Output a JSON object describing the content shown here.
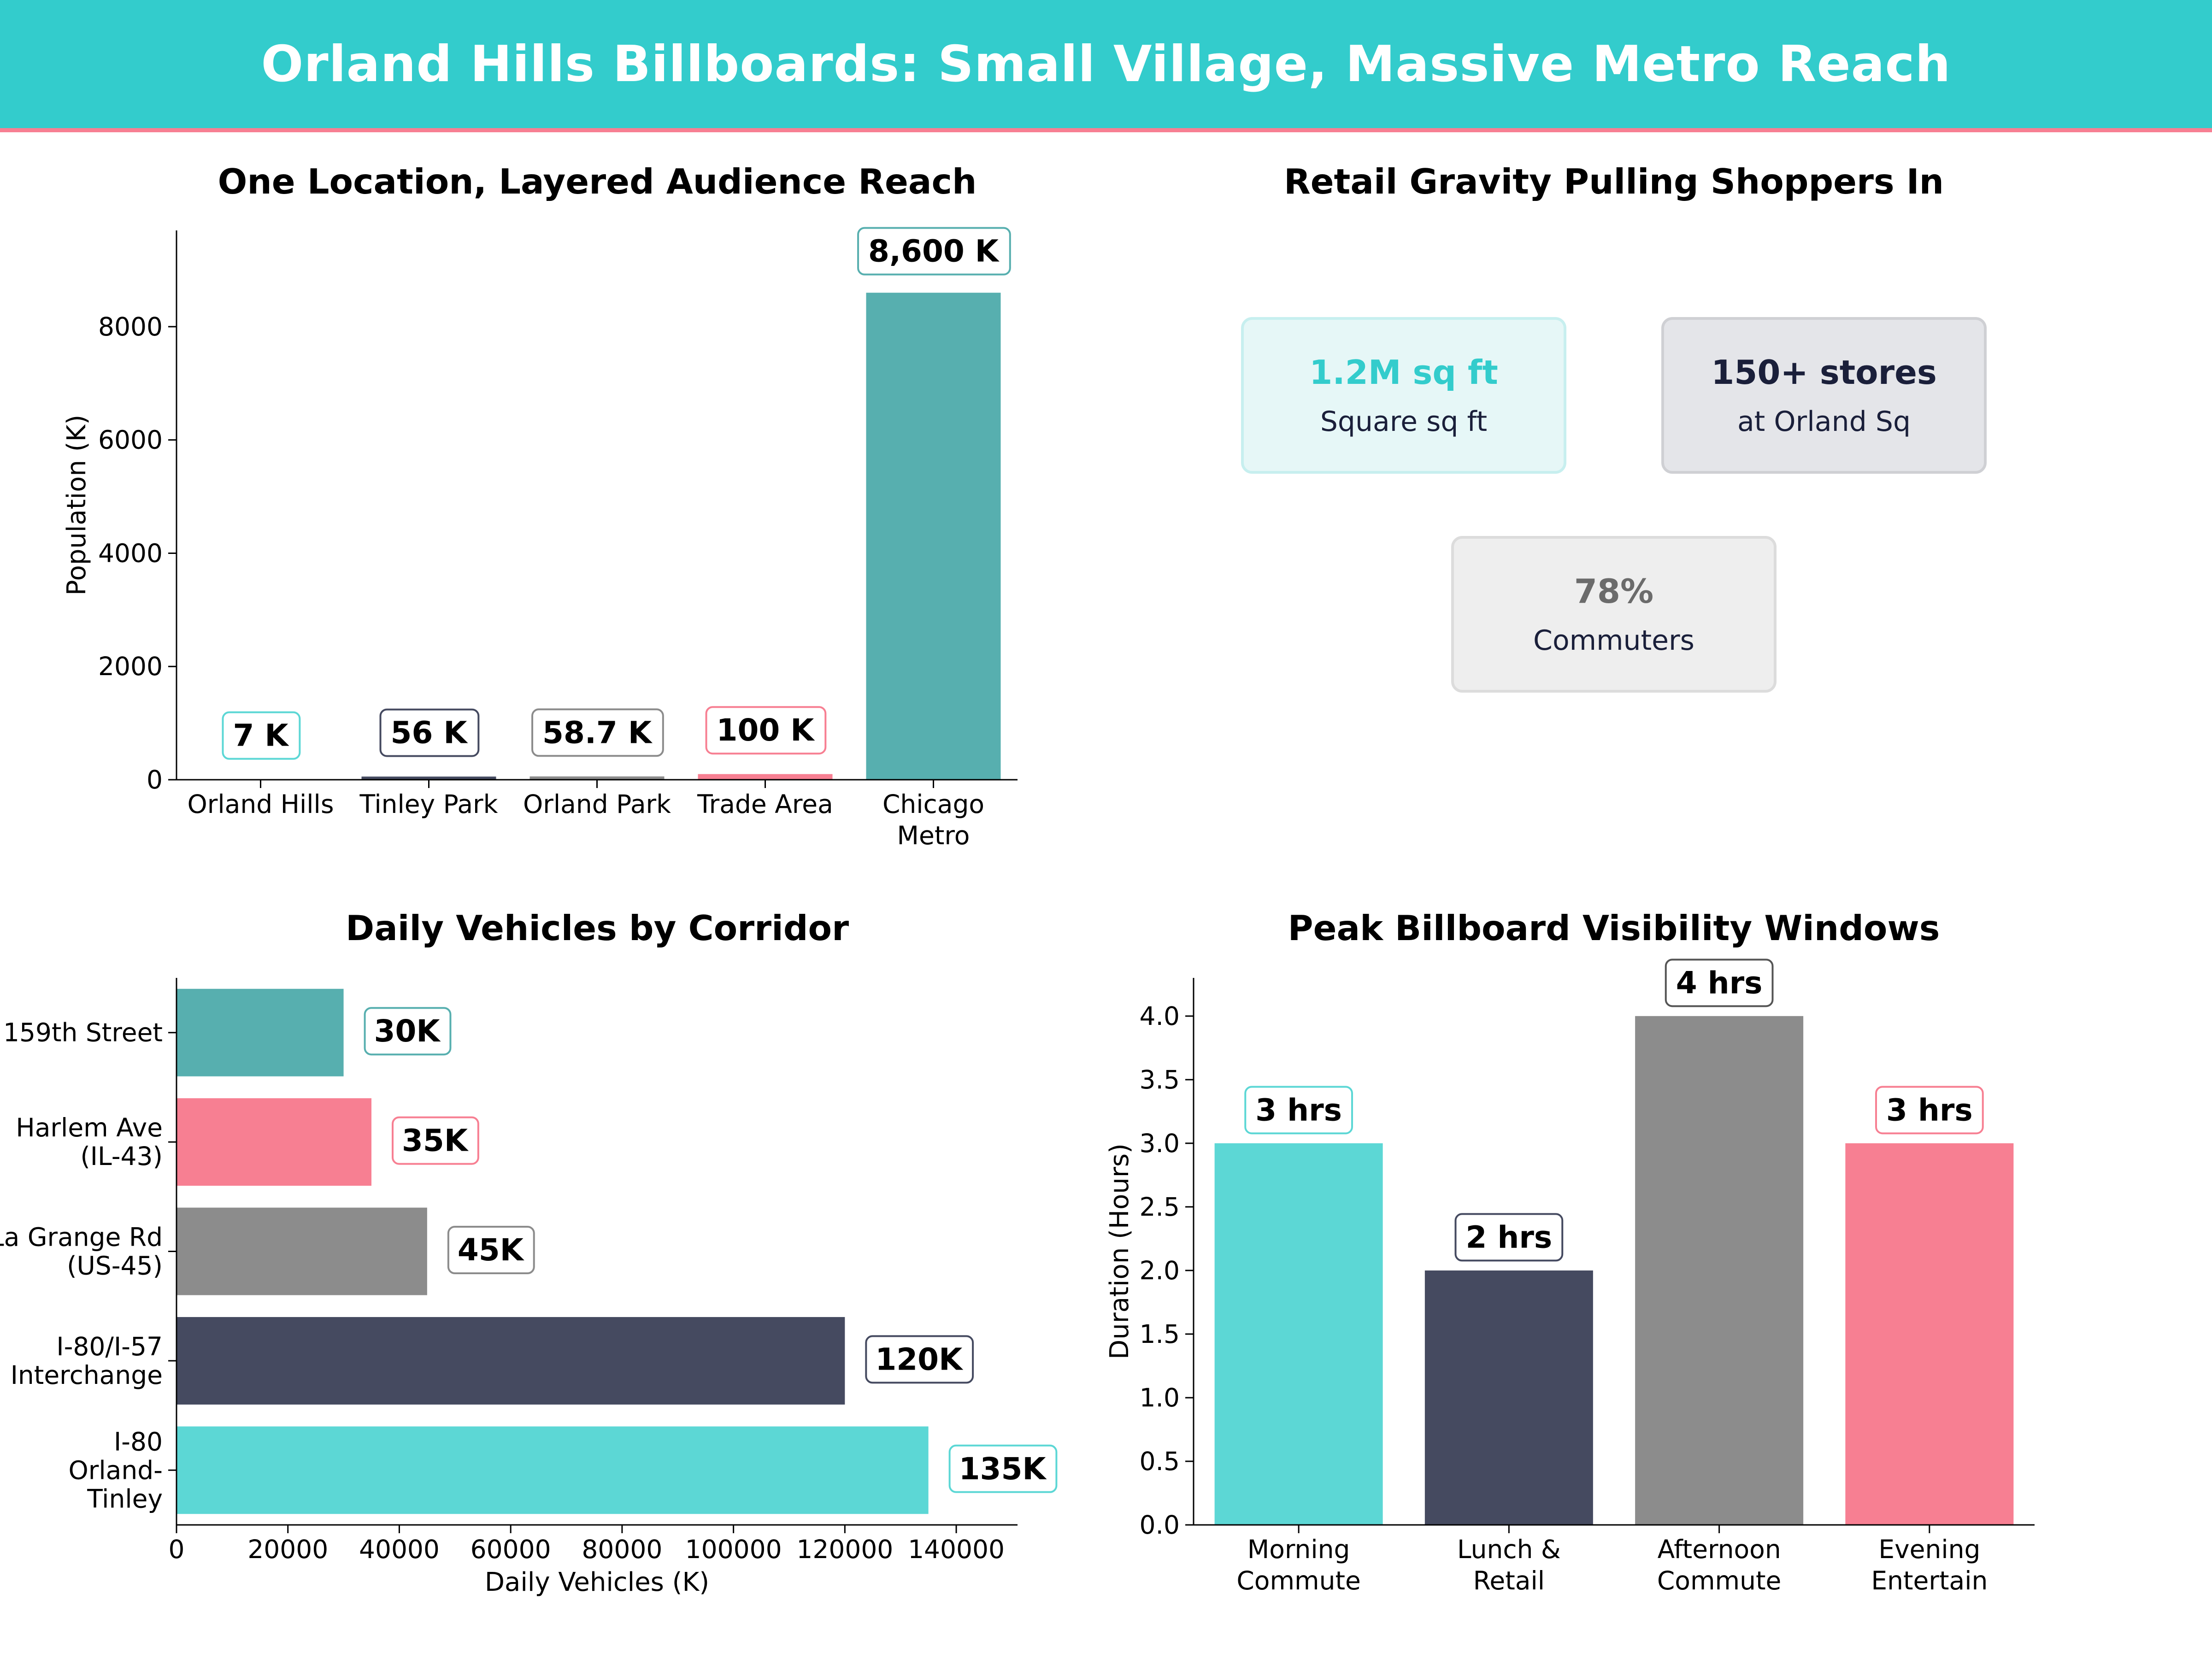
{
  "header": {
    "title": "Orland Hills Billboards: Small Village, Massive Metro Reach"
  },
  "colors": {
    "header_bg": "#33cccc",
    "header_border": "#f77f92",
    "teal_dark": "#57afaf",
    "navy": "#454a60",
    "gray": "#8c8c8c",
    "pink": "#f77f92",
    "cyan": "#5cd7d5"
  },
  "retail": {
    "title": "Retail Gravity Pulling Shoppers In",
    "cards": [
      {
        "value": "1.2M sq ft",
        "label": "Square sq ft",
        "value_color": "#33cccc",
        "bg": "#e6f7f7",
        "border": "#c7efef"
      },
      {
        "value": "150+ stores",
        "label": "at Orland Sq",
        "value_color": "#1a1f3a",
        "bg": "#e4e5e9",
        "border": "#cfd0d4"
      },
      {
        "value": "78%",
        "label": "Commuters",
        "value_color": "#6b6b6b",
        "bg": "#eeeeee",
        "border": "#dcdcdc"
      }
    ]
  },
  "chart_data": [
    {
      "type": "bar",
      "title": "One Location, Layered Audience Reach",
      "ylabel": "Population (K)",
      "xlabel": "",
      "categories": [
        "Orland Hills",
        "Tinley Park",
        "Orland Park",
        "Trade Area",
        "Chicago Metro"
      ],
      "tick_labels": [
        [
          "Orland Hills"
        ],
        [
          "Tinley Park"
        ],
        [
          "Orland Park"
        ],
        [
          "Trade Area"
        ],
        [
          "Chicago",
          "Metro"
        ]
      ],
      "values": [
        7,
        56,
        58.7,
        100,
        8600
      ],
      "data_labels": [
        "7 K",
        "56 K",
        "58.7 K",
        "100 K",
        "8,600 K"
      ],
      "colors": [
        "#5cd7d5",
        "#454a60",
        "#8c8c8c",
        "#f77f92",
        "#57afaf"
      ],
      "ylim": [
        0,
        9700
      ],
      "yticks": [
        0,
        2000,
        4000,
        6000,
        8000
      ],
      "grid": false
    },
    {
      "type": "bar",
      "orientation": "horizontal",
      "title": "Daily Vehicles by Corridor",
      "xlabel": "Daily Vehicles (K)",
      "ylabel": "",
      "categories": [
        "159th Street",
        "Harlem Ave (IL-43)",
        "La Grange Rd (US-45)",
        "I-80/I-57 Interchange",
        "I-80 Orland-Tinley"
      ],
      "tick_labels": [
        [
          "159th Street"
        ],
        [
          "Harlem Ave",
          "(IL-43)"
        ],
        [
          "La Grange Rd",
          "(US-45)"
        ],
        [
          "I-80/I-57",
          "Interchange"
        ],
        [
          "I-80",
          "Orland-",
          "Tinley"
        ]
      ],
      "values": [
        30000,
        35000,
        45000,
        120000,
        135000
      ],
      "data_labels": [
        "30K",
        "35K",
        "45K",
        "120K",
        "135K"
      ],
      "colors": [
        "#57afaf",
        "#f77f92",
        "#8c8c8c",
        "#454a60",
        "#5cd7d5"
      ],
      "xlim": [
        0,
        151000
      ],
      "xticks": [
        0,
        20000,
        40000,
        60000,
        80000,
        100000,
        120000,
        140000
      ],
      "grid": false
    },
    {
      "type": "bar",
      "title": "Peak Billboard Visibility Windows",
      "ylabel": "Duration (Hours)",
      "xlabel": "",
      "categories": [
        "Morning Commute",
        "Lunch & Retail",
        "Afternoon Commute",
        "Evening Entertain"
      ],
      "tick_labels": [
        [
          "Morning",
          "Commute"
        ],
        [
          "Lunch &",
          "Retail"
        ],
        [
          "Afternoon",
          "Commute"
        ],
        [
          "Evening",
          "Entertain"
        ]
      ],
      "values": [
        3,
        2,
        4,
        3
      ],
      "data_labels": [
        "3 hrs",
        "2 hrs",
        "4 hrs",
        "3 hrs"
      ],
      "colors": [
        "#5cd7d5",
        "#454a60",
        "#8c8c8c",
        "#f77f92"
      ],
      "ylim": [
        0,
        4.3
      ],
      "yticks": [
        0.0,
        0.5,
        1.0,
        1.5,
        2.0,
        2.5,
        3.0,
        3.5,
        4.0
      ],
      "ytick_labels": [
        "0.0",
        "0.5",
        "1.0",
        "1.5",
        "2.0",
        "2.5",
        "3.0",
        "3.5",
        "4.0"
      ],
      "grid": false
    }
  ]
}
